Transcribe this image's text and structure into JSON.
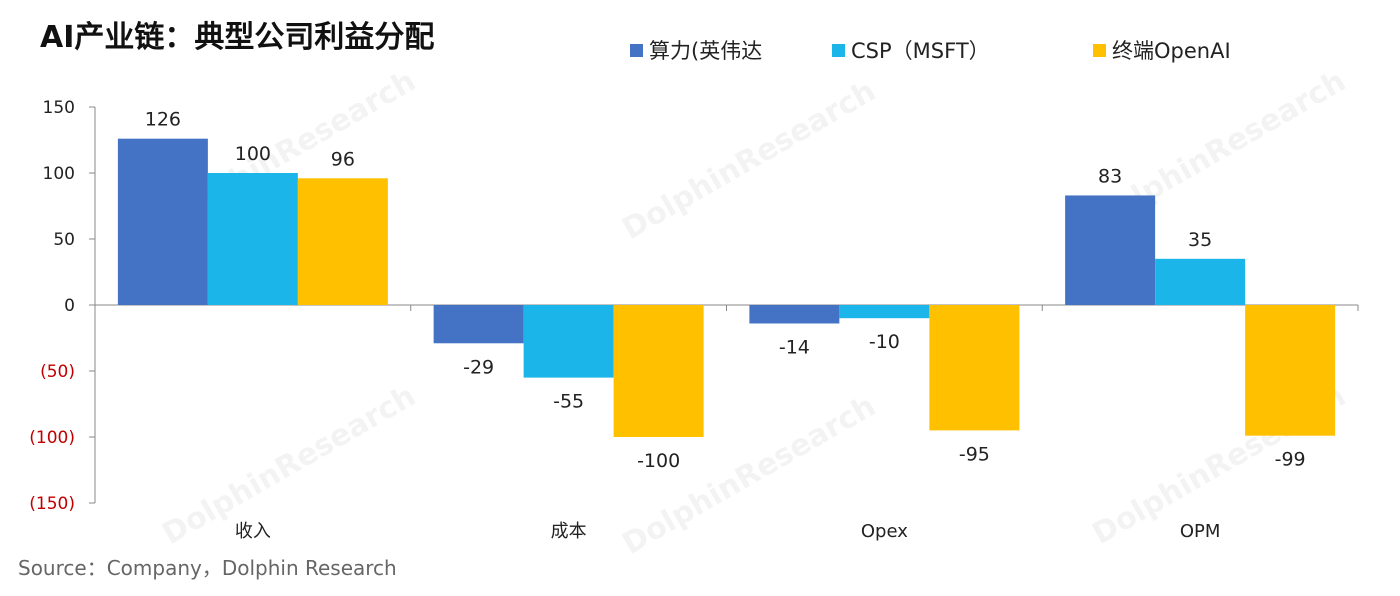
{
  "chart_data": {
    "type": "bar",
    "title": "AI产业链：典型公司利益分配",
    "categories": [
      "收入",
      "成本",
      "Opex",
      "OPM"
    ],
    "series": [
      {
        "name": "算力(英伟达",
        "color": "#4472C4",
        "values": [
          126,
          -29,
          -14,
          83
        ],
        "labels": [
          "126",
          "-29",
          "-14",
          "83"
        ]
      },
      {
        "name": "CSP（MSFT）",
        "color": "#1BB5EA",
        "values": [
          100,
          -55,
          -10,
          35
        ],
        "labels": [
          "100",
          "-55",
          "-10",
          "35"
        ]
      },
      {
        "name": "终端OpenAI",
        "color": "#FFC000",
        "values": [
          96,
          -100,
          -95,
          -99
        ],
        "labels": [
          "96",
          "-100",
          "-95",
          "-99"
        ]
      }
    ],
    "ylim": [
      -150,
      150
    ],
    "yticks": [
      150,
      100,
      50,
      0,
      -50,
      -100,
      -150
    ],
    "ytick_labels": [
      "150",
      "100",
      "50",
      "0",
      "(50)",
      "(100)",
      "(150)"
    ],
    "negative_tick_color": "#C00000",
    "grid": false,
    "legend_position": "top-right",
    "source": "Source：Company，Dolphin Research",
    "watermark": "DolphinResearch"
  }
}
